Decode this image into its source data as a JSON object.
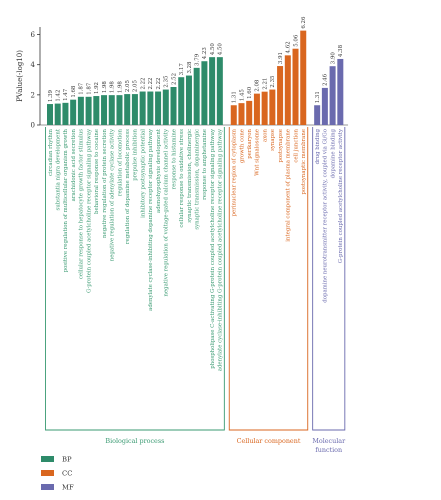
{
  "chart_data": {
    "type": "bar",
    "ylabel": "PValue(-log10)",
    "ylim": [
      0,
      6.5
    ],
    "yticks": [
      0,
      2,
      4,
      6
    ],
    "grid": false,
    "legend_placement": "bottom-left",
    "groups": [
      {
        "name": "BP",
        "section_label": "Biological process",
        "color": "#2e8b6a",
        "label_color": "#3a9a72",
        "categories": [
          "circadian rhythm",
          "substantia nigra development",
          "positive regulation of multicellular organism growth",
          "arachidonic acid secretion",
          "cellular response to hepatocyte growth factor stimulus",
          "G-protein coupled acetylcholine receptor signaling pathway",
          "behavioral response to cocaine",
          "negative regulation of protein secretion",
          "negative regulation of adenylate cyclase activity",
          "regulation of locomotion",
          "regulation of dopamine metabolic process",
          "prepulse inhibition",
          "inhibitory postsynaptic potential",
          "adenylate cyclase-inhibiting dopamine receptor signaling pathway",
          "adenohypophysis development",
          "negative regulation of voltage-gated calcium channel activity",
          "response to histamine",
          "cellular response to oxidative stress",
          "synaptic transmission, cholinergic",
          "synaptic transmission, dopaminergic",
          "response to amphetamine",
          "phospholipase C-activating G-protein coupled acetylcholine receptor signaling pathway",
          "adenylate cyclase-inhibiting G-protein coupled acetylcholine receptor signaling pathway"
        ],
        "values": [
          1.39,
          1.42,
          1.47,
          1.68,
          1.87,
          1.87,
          1.92,
          1.98,
          1.98,
          1.98,
          2.05,
          2.05,
          2.22,
          2.22,
          2.22,
          2.35,
          2.52,
          3.17,
          3.28,
          3.79,
          4.23,
          4.5,
          4.5
        ]
      },
      {
        "name": "CC",
        "section_label": "Cellular component",
        "color": "#d9661f",
        "label_color": "#d9661f",
        "categories": [
          "perinuclear region of cytoplasm",
          "growth cone",
          "perikaryon",
          "Wnt signalosome",
          "axon",
          "synapse",
          "postsynapse",
          "integral component of plasma membrane",
          "cell junction",
          "postsynaptic membrane"
        ],
        "values": [
          1.31,
          1.45,
          1.6,
          2.08,
          2.21,
          2.35,
          3.91,
          4.62,
          5.06,
          6.26
        ]
      },
      {
        "name": "MF",
        "section_label": "Molecular function",
        "color": "#6a6aae",
        "label_color": "#6a6aae",
        "categories": [
          "drug binding",
          "dopamine neurotransmitter receptor activity, coupled via Gi/Go",
          "dopamine binding",
          "G-protein coupled acetylcholine receptor activity"
        ],
        "values": [
          1.31,
          2.46,
          3.9,
          4.38
        ]
      }
    ],
    "legend": [
      {
        "label": "BP",
        "color": "#2e8b6a"
      },
      {
        "label": "CC",
        "color": "#d9661f"
      },
      {
        "label": "MF",
        "color": "#6a6aae"
      }
    ]
  }
}
